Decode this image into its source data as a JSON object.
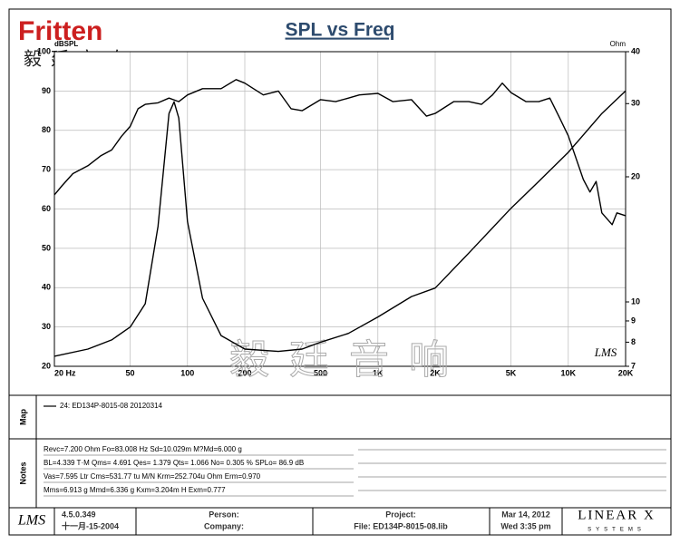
{
  "logo": {
    "name": "Fritten",
    "chinese": "毅廷音响",
    "watermark": "毅廷音响"
  },
  "chart_data": {
    "type": "line",
    "title": "SPL vs Freq",
    "ylabel": "dBSPL",
    "y2label": "Ohm",
    "xscale": "log",
    "y2scale": "log",
    "grid": true,
    "xlim": [
      20,
      20000
    ],
    "xticks": [
      {
        "value": 20,
        "label": "20 Hz"
      },
      50,
      100,
      200,
      500,
      {
        "value": 1000,
        "label": "1K"
      },
      {
        "value": 2000,
        "label": "2K"
      },
      {
        "value": 5000,
        "label": "5K"
      },
      {
        "value": 10000,
        "label": "10K"
      },
      {
        "value": 20000,
        "label": "20K"
      }
    ],
    "ylim": [
      20,
      100
    ],
    "yticks": [
      20,
      30,
      40,
      50,
      60,
      70,
      80,
      90,
      100
    ],
    "y2lim": [
      7,
      40
    ],
    "y2ticks": [
      7,
      8,
      9,
      10,
      20,
      30,
      40
    ],
    "series": [
      {
        "name": "24: ED134P-8015-08 20120314",
        "color": "#000000",
        "x": [
          20,
          22,
          25,
          30,
          35,
          40,
          45,
          50,
          55,
          60,
          70,
          80,
          90,
          100,
          120,
          150,
          180,
          200,
          250,
          300,
          350,
          400,
          500,
          600,
          700,
          800,
          1000,
          1200,
          1500,
          1800,
          2000,
          2500,
          3000,
          3500,
          4000,
          4500,
          5000,
          6000,
          7000,
          8000,
          9000,
          10000,
          12000,
          13000,
          14000,
          15000,
          17000,
          18000,
          20000
        ],
        "values": [
          63.6,
          66,
          69,
          71,
          73.5,
          75,
          78.5,
          81,
          85.5,
          86.6,
          87,
          88.2,
          87.3,
          89,
          90.6,
          90.6,
          92.9,
          92,
          89,
          90,
          85.5,
          85,
          87.8,
          87.3,
          88.2,
          89,
          89.4,
          87.3,
          87.8,
          83.6,
          84.3,
          87.3,
          87.3,
          86.6,
          89,
          92,
          89.6,
          87.3,
          87.3,
          88.2,
          83.2,
          78.6,
          67.5,
          64.3,
          67,
          59,
          56,
          59,
          58.3
        ]
      },
      {
        "axis": "y2",
        "color": "#000000",
        "x": [
          20,
          30,
          40,
          50,
          60,
          70,
          80,
          85,
          90,
          100,
          120,
          150,
          200,
          300,
          400,
          500,
          700,
          1000,
          1500,
          2000,
          3000,
          5000,
          7000,
          10000,
          15000,
          20000
        ],
        "values": [
          7.4,
          7.7,
          8.1,
          8.7,
          9.9,
          15.2,
          28.4,
          30.3,
          27.7,
          15.6,
          10.2,
          8.3,
          7.7,
          7.6,
          7.7,
          8.0,
          8.4,
          9.2,
          10.3,
          10.8,
          13.1,
          16.8,
          19.5,
          22.9,
          28.4,
          32.2
        ]
      }
    ]
  },
  "sections": {
    "map": "Map",
    "notes": "Notes"
  },
  "notes": [
    "Revc=7.200 Ohm  Fo=83.008 Hz  Sd=10.029m M?Md=6.000 g",
    "BL=4.339 T·M  Qms= 4.691  Qes= 1.379  Qts= 1.066  No= 0.305 %  SPLo= 86.9 dB",
    "Vas=7.595 Ltr  Cms=531.77 tu M/N  Krm=252.704u Ohm  Erm=0.970",
    "Mms=6.913 g  Mmd=6.336 g  Kxm=3.204m H  Exm=0.777"
  ],
  "footer": {
    "app": "LMS",
    "version": "4.5.0.349",
    "date": "十一月-15-2004",
    "person": "Person:",
    "company": "Company:",
    "project": "Project:",
    "file": "File: ED134P-8015-08.lib",
    "day": "Mar 14, 2012",
    "time": "Wed  3:35 pm",
    "brand": "LINEAR X",
    "brand_sub": "SYSTEMS"
  }
}
